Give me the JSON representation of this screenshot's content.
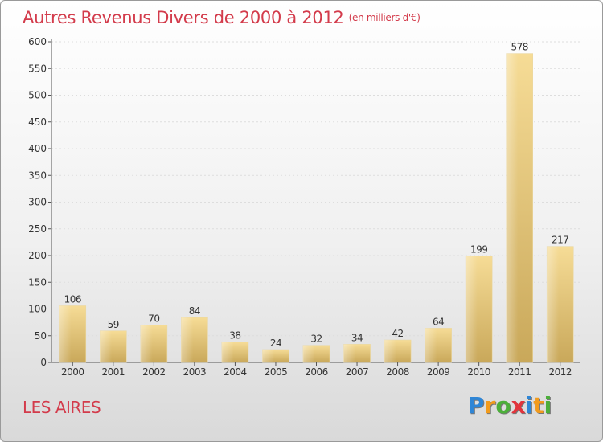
{
  "title": "Autres Revenus Divers de 2000 à 2012",
  "unit": "(en milliers d'€)",
  "place": "LES AIRES",
  "logo": {
    "text": "Proxiti",
    "letters": [
      {
        "ch": "P",
        "color": "#2f86d6"
      },
      {
        "ch": "r",
        "color": "#f29b1c"
      },
      {
        "ch": "o",
        "color": "#4caf3a"
      },
      {
        "ch": "x",
        "color": "#e2343c"
      },
      {
        "ch": "i",
        "color": "#2f86d6"
      },
      {
        "ch": "t",
        "color": "#f29b1c"
      },
      {
        "ch": "i",
        "color": "#4caf3a"
      }
    ]
  },
  "colors": {
    "title": "#d33b4b",
    "bar_light": "#f6dc96",
    "bar_dark": "#c9a85a",
    "axis": "#555555",
    "grid": "#dddddd"
  },
  "chart_data": {
    "type": "bar",
    "categories": [
      "2000",
      "2001",
      "2002",
      "2003",
      "2004",
      "2005",
      "2006",
      "2007",
      "2008",
      "2009",
      "2010",
      "2011",
      "2012"
    ],
    "values": [
      106,
      59,
      70,
      84,
      38,
      24,
      32,
      34,
      42,
      64,
      199,
      578,
      217
    ],
    "ylim": [
      0,
      600
    ],
    "yticks": [
      0,
      50,
      100,
      150,
      200,
      250,
      300,
      350,
      400,
      450,
      500,
      550,
      600
    ],
    "grid": true
  }
}
